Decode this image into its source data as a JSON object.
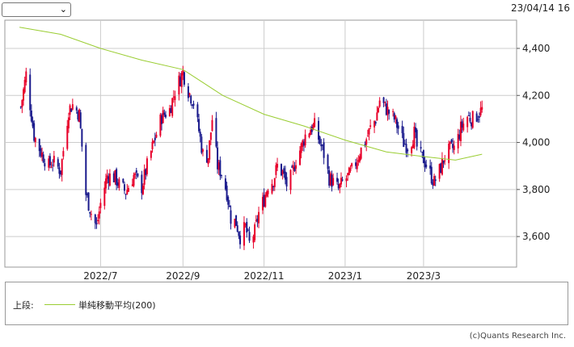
{
  "selector": {
    "value": "",
    "icon": "chevron-down-icon"
  },
  "datetime": "23/04/14 16",
  "legend": {
    "section_label": "上段:",
    "ma_label": "単純移動平均(200)",
    "ma_color": "#9acd32"
  },
  "copyright": "(c)Quants Research Inc.",
  "colors": {
    "up": "#e8002a",
    "down": "#1a1a8c"
  },
  "chart_data": {
    "type": "candlestick",
    "x_tick_labels": [
      "2022/7",
      "2022/9",
      "2022/11",
      "2023/1",
      "2023/3"
    ],
    "x_tick_dates": [
      "2022-07-01",
      "2022-09-01",
      "2022-11-01",
      "2023-01-01",
      "2023-03-01"
    ],
    "y_ticks": [
      3600,
      3800,
      4000,
      4200,
      4400
    ],
    "y_tick_labels": [
      "3,600",
      "3,800",
      "4,000",
      "4,200",
      "4,400"
    ],
    "ylim": [
      3470,
      4520
    ],
    "xlim": [
      "2022-04-20",
      "2023-05-10"
    ],
    "grid": true,
    "close_path": [
      [
        "2022-05-02",
        4150
      ],
      [
        "2022-05-06",
        4290
      ],
      [
        "2022-05-12",
        4030
      ],
      [
        "2022-05-17",
        3960
      ],
      [
        "2022-05-23",
        3900
      ],
      [
        "2022-05-26",
        3920
      ],
      [
        "2022-06-01",
        3880
      ],
      [
        "2022-06-07",
        4140
      ],
      [
        "2022-06-10",
        4160
      ],
      [
        "2022-06-15",
        4120
      ],
      [
        "2022-06-20",
        3780
      ],
      [
        "2022-06-24",
        3700
      ],
      [
        "2022-06-28",
        3640
      ],
      [
        "2022-07-01",
        3740
      ],
      [
        "2022-07-06",
        3860
      ],
      [
        "2022-07-12",
        3850
      ],
      [
        "2022-07-15",
        3820
      ],
      [
        "2022-07-20",
        3790
      ],
      [
        "2022-07-26",
        3860
      ],
      [
        "2022-08-01",
        3810
      ],
      [
        "2022-08-05",
        3900
      ],
      [
        "2022-08-10",
        4000
      ],
      [
        "2022-08-16",
        4110
      ],
      [
        "2022-08-22",
        4140
      ],
      [
        "2022-08-26",
        4220
      ],
      [
        "2022-09-01",
        4300
      ],
      [
        "2022-09-05",
        4220
      ],
      [
        "2022-09-09",
        4170
      ],
      [
        "2022-09-13",
        4050
      ],
      [
        "2022-09-16",
        3950
      ],
      [
        "2022-09-20",
        3940
      ],
      [
        "2022-09-23",
        4100
      ],
      [
        "2022-09-27",
        3900
      ],
      [
        "2022-09-30",
        3870
      ],
      [
        "2022-10-04",
        3790
      ],
      [
        "2022-10-07",
        3680
      ],
      [
        "2022-10-11",
        3660
      ],
      [
        "2022-10-14",
        3600
      ],
      [
        "2022-10-18",
        3640
      ],
      [
        "2022-10-21",
        3570
      ],
      [
        "2022-10-25",
        3620
      ],
      [
        "2022-10-28",
        3700
      ],
      [
        "2022-11-01",
        3760
      ],
      [
        "2022-11-04",
        3820
      ],
      [
        "2022-11-08",
        3840
      ],
      [
        "2022-11-11",
        3900
      ],
      [
        "2022-11-15",
        3870
      ],
      [
        "2022-11-18",
        3820
      ],
      [
        "2022-11-22",
        3860
      ],
      [
        "2022-11-25",
        3930
      ],
      [
        "2022-11-29",
        3980
      ],
      [
        "2022-12-02",
        4030
      ],
      [
        "2022-12-06",
        4060
      ],
      [
        "2022-12-09",
        4070
      ],
      [
        "2022-12-13",
        4000
      ],
      [
        "2022-12-16",
        3950
      ],
      [
        "2022-12-20",
        3850
      ],
      [
        "2022-12-23",
        3830
      ],
      [
        "2022-12-27",
        3800
      ],
      [
        "2022-12-30",
        3830
      ],
      [
        "2023-01-04",
        3860
      ],
      [
        "2023-01-08",
        3900
      ],
      [
        "2023-01-12",
        3960
      ],
      [
        "2023-01-16",
        4000
      ],
      [
        "2023-01-20",
        4060
      ],
      [
        "2023-01-24",
        4100
      ],
      [
        "2023-01-27",
        4180
      ],
      [
        "2023-01-31",
        4150
      ],
      [
        "2023-02-04",
        4120
      ],
      [
        "2023-02-07",
        4100
      ],
      [
        "2023-02-10",
        4060
      ],
      [
        "2023-02-14",
        4000
      ],
      [
        "2023-02-18",
        3980
      ],
      [
        "2023-02-22",
        4040
      ],
      [
        "2023-02-25",
        3950
      ],
      [
        "2023-03-01",
        3930
      ],
      [
        "2023-03-05",
        3880
      ],
      [
        "2023-03-09",
        3830
      ],
      [
        "2023-03-13",
        3880
      ],
      [
        "2023-03-17",
        3940
      ],
      [
        "2023-03-21",
        3970
      ],
      [
        "2023-03-25",
        3980
      ],
      [
        "2023-03-29",
        4060
      ],
      [
        "2023-04-03",
        4110
      ],
      [
        "2023-04-07",
        4100
      ],
      [
        "2023-04-11",
        4120
      ],
      [
        "2023-04-14",
        4140
      ]
    ],
    "series": [
      {
        "name": "単純移動平均(200)",
        "values": [
          [
            "2022-05-01",
            4490
          ],
          [
            "2022-06-01",
            4460
          ],
          [
            "2022-07-01",
            4400
          ],
          [
            "2022-08-01",
            4350
          ],
          [
            "2022-09-01",
            4310
          ],
          [
            "2022-10-01",
            4200
          ],
          [
            "2022-11-01",
            4120
          ],
          [
            "2022-12-01",
            4070
          ],
          [
            "2023-01-01",
            4010
          ],
          [
            "2023-02-01",
            3960
          ],
          [
            "2023-03-01",
            3940
          ],
          [
            "2023-03-25",
            3925
          ],
          [
            "2023-04-14",
            3950
          ]
        ]
      }
    ]
  }
}
